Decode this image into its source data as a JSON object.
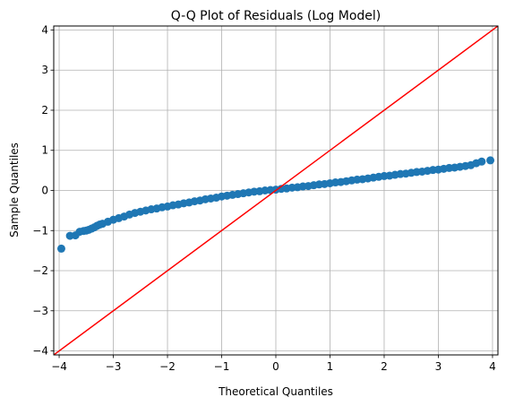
{
  "chart_data": {
    "type": "scatter",
    "title": "Q-Q Plot of Residuals (Log Model)",
    "xlabel": "Theoretical Quantiles",
    "ylabel": "Sample Quantiles",
    "xlim": [
      -4.1,
      4.1
    ],
    "ylim": [
      -4.1,
      4.1
    ],
    "xticks": [
      -4,
      -3,
      -2,
      -1,
      0,
      1,
      2,
      3,
      4
    ],
    "yticks": [
      -4,
      -3,
      -2,
      -1,
      0,
      1,
      2,
      3,
      4
    ],
    "xtick_labels": [
      "−4",
      "−3",
      "−2",
      "−1",
      "0",
      "1",
      "2",
      "3",
      "4"
    ],
    "ytick_labels": [
      "−4",
      "−3",
      "−2",
      "−1",
      "0",
      "1",
      "2",
      "3",
      "4"
    ],
    "grid": true,
    "series": [
      {
        "color": "#1f77b4",
        "x": [
          -3.96,
          -3.8,
          -3.7,
          -3.62,
          -3.55,
          -3.5,
          -3.45,
          -3.4,
          -3.35,
          -3.3,
          -3.25,
          -3.2,
          -3.1,
          -3.0,
          -2.9,
          -2.8,
          -2.7,
          -2.6,
          -2.5,
          -2.4,
          -2.3,
          -2.2,
          -2.1,
          -2.0,
          -1.9,
          -1.8,
          -1.7,
          -1.6,
          -1.5,
          -1.4,
          -1.3,
          -1.2,
          -1.1,
          -1.0,
          -0.9,
          -0.8,
          -0.7,
          -0.6,
          -0.5,
          -0.4,
          -0.3,
          -0.2,
          -0.1,
          0.0,
          0.1,
          0.2,
          0.3,
          0.4,
          0.5,
          0.6,
          0.7,
          0.8,
          0.9,
          1.0,
          1.1,
          1.2,
          1.3,
          1.4,
          1.5,
          1.6,
          1.7,
          1.8,
          1.9,
          2.0,
          2.1,
          2.2,
          2.3,
          2.4,
          2.5,
          2.6,
          2.7,
          2.8,
          2.9,
          3.0,
          3.1,
          3.2,
          3.3,
          3.4,
          3.5,
          3.6,
          3.7,
          3.8,
          3.96
        ],
        "y": [
          -1.45,
          -1.13,
          -1.12,
          -1.03,
          -1.01,
          -1.0,
          -0.98,
          -0.95,
          -0.92,
          -0.88,
          -0.85,
          -0.83,
          -0.78,
          -0.73,
          -0.69,
          -0.65,
          -0.6,
          -0.56,
          -0.53,
          -0.5,
          -0.47,
          -0.45,
          -0.42,
          -0.4,
          -0.37,
          -0.35,
          -0.32,
          -0.3,
          -0.27,
          -0.25,
          -0.22,
          -0.2,
          -0.18,
          -0.15,
          -0.13,
          -0.11,
          -0.09,
          -0.07,
          -0.05,
          -0.03,
          -0.02,
          0.0,
          0.01,
          0.02,
          0.04,
          0.05,
          0.07,
          0.08,
          0.1,
          0.11,
          0.13,
          0.15,
          0.16,
          0.18,
          0.2,
          0.21,
          0.23,
          0.25,
          0.27,
          0.28,
          0.3,
          0.32,
          0.34,
          0.36,
          0.37,
          0.39,
          0.41,
          0.42,
          0.44,
          0.46,
          0.47,
          0.49,
          0.51,
          0.52,
          0.54,
          0.56,
          0.57,
          0.59,
          0.61,
          0.63,
          0.68,
          0.72,
          0.75
        ]
      }
    ],
    "reference_line": {
      "color": "#ff0000",
      "x": [
        -4.1,
        4.1
      ],
      "y": [
        -4.1,
        4.1
      ]
    }
  }
}
